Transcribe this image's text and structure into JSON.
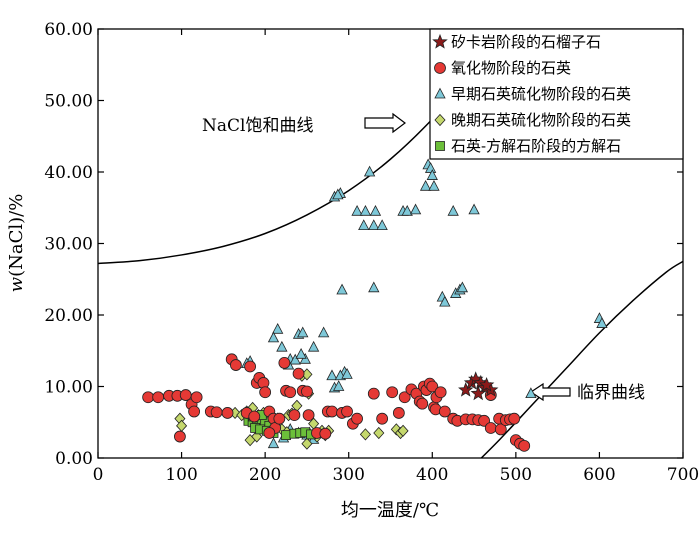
{
  "chart_data": {
    "type": "scatter",
    "xlabel": "均一温度/℃",
    "ylabel_prefix": "w",
    "ylabel_rest": "(NaCl)/%",
    "xlim": [
      0,
      700
    ],
    "ylim": [
      0,
      60
    ],
    "x_ticks": [
      0,
      100,
      200,
      300,
      400,
      500,
      600,
      700
    ],
    "y_ticks": [
      0,
      10,
      20,
      30,
      40,
      50,
      60
    ],
    "y_tick_labels": [
      "0.00",
      "10.00",
      "20.00",
      "30.00",
      "40.00",
      "50.00",
      "60.00"
    ],
    "colors": {
      "skarn": "#8B1A1A",
      "oxide": "#E53935",
      "early": "#7EC8D8",
      "late": "#C5D86D",
      "calcite": "#6CBF3A"
    },
    "curves": [
      {
        "name": "NaCl饱和曲线",
        "label": "NaCl饱和曲线",
        "points": [
          [
            0,
            27.2
          ],
          [
            50,
            27.6
          ],
          [
            100,
            28.4
          ],
          [
            150,
            29.6
          ],
          [
            200,
            31.4
          ],
          [
            250,
            34.0
          ],
          [
            300,
            37.4
          ],
          [
            350,
            41.8
          ],
          [
            400,
            47.4
          ],
          [
            450,
            54.2
          ],
          [
            494,
            61.5
          ]
        ]
      },
      {
        "name": "临界曲线",
        "label": "临界曲线",
        "points": [
          [
            450,
            -1
          ],
          [
            480,
            2.5
          ],
          [
            520,
            7.5
          ],
          [
            560,
            12.5
          ],
          [
            600,
            17.5
          ],
          [
            640,
            22
          ],
          [
            680,
            26
          ],
          [
            700,
            27.5
          ]
        ]
      }
    ],
    "series": [
      {
        "name": "矽卡岩阶段的石榴子石",
        "marker": "star",
        "points": [
          [
            440,
            9.5
          ],
          [
            447,
            10.5
          ],
          [
            452,
            11
          ],
          [
            458,
            10.5
          ],
          [
            463,
            9.8
          ],
          [
            470,
            9.5
          ],
          [
            455,
            9.0
          ],
          [
            465,
            10.2
          ]
        ]
      },
      {
        "name": "氧化物阶段的石英",
        "marker": "circle",
        "points": [
          [
            60,
            8.5
          ],
          [
            72,
            8.5
          ],
          [
            85,
            8.7
          ],
          [
            95,
            8.7
          ],
          [
            105,
            8.8
          ],
          [
            112,
            7.5
          ],
          [
            118,
            8.5
          ],
          [
            115,
            6.5
          ],
          [
            98,
            3
          ],
          [
            135,
            6.5
          ],
          [
            142,
            6.4
          ],
          [
            155,
            6.3
          ],
          [
            160,
            13.8
          ],
          [
            165,
            13
          ],
          [
            182,
            12.8
          ],
          [
            178,
            6.3
          ],
          [
            187,
            5.8
          ],
          [
            190,
            10.5
          ],
          [
            193,
            11.2
          ],
          [
            198,
            10.5
          ],
          [
            200,
            9.2
          ],
          [
            205,
            6.5
          ],
          [
            210,
            5.5
          ],
          [
            212,
            4.2
          ],
          [
            217,
            5.5
          ],
          [
            205,
            3.5
          ],
          [
            223,
            13.3
          ],
          [
            225,
            9.4
          ],
          [
            230,
            9.2
          ],
          [
            235,
            6.0
          ],
          [
            240,
            11.8
          ],
          [
            245,
            9.4
          ],
          [
            250,
            9.3
          ],
          [
            252,
            6.0
          ],
          [
            262,
            3.5
          ],
          [
            272,
            3.4
          ],
          [
            275,
            6.5
          ],
          [
            280,
            6.5
          ],
          [
            292,
            6.3
          ],
          [
            298,
            6.5
          ],
          [
            305,
            4.8
          ],
          [
            310,
            5.5
          ],
          [
            330,
            9.0
          ],
          [
            340,
            5.5
          ],
          [
            352,
            9.2
          ],
          [
            360,
            6.3
          ],
          [
            367,
            8.5
          ],
          [
            375,
            9.6
          ],
          [
            381,
            9.0
          ],
          [
            385,
            7.9
          ],
          [
            388,
            7.6
          ],
          [
            390,
            10.0
          ],
          [
            393,
            9.5
          ],
          [
            397,
            10.4
          ],
          [
            400,
            10.0
          ],
          [
            402,
            7.1
          ],
          [
            404,
            6.8
          ],
          [
            405,
            8.5
          ],
          [
            410,
            9.2
          ],
          [
            415,
            6.5
          ],
          [
            425,
            5.5
          ],
          [
            430,
            5.2
          ],
          [
            440,
            5.4
          ],
          [
            448,
            5.4
          ],
          [
            455,
            5.3
          ],
          [
            462,
            5.2
          ],
          [
            470,
            8.8
          ],
          [
            470,
            4.2
          ],
          [
            480,
            5.5
          ],
          [
            482,
            4.0
          ],
          [
            488,
            5.3
          ],
          [
            493,
            5.4
          ],
          [
            498,
            5.5
          ],
          [
            500,
            2.5
          ],
          [
            505,
            2.0
          ],
          [
            510,
            1.7
          ]
        ]
      },
      {
        "name": "早期石英硫化物阶段的石英",
        "marker": "triangle",
        "points": [
          [
            283,
            36.5
          ],
          [
            290,
            37.0
          ],
          [
            287,
            36.8
          ],
          [
            325,
            40.0
          ],
          [
            310,
            34.5
          ],
          [
            320,
            34.5
          ],
          [
            332,
            34.5
          ],
          [
            318,
            32.5
          ],
          [
            330,
            32.5
          ],
          [
            340,
            32.5
          ],
          [
            365,
            34.5
          ],
          [
            370,
            34.5
          ],
          [
            380,
            34.7
          ],
          [
            395,
            41.0
          ],
          [
            398,
            40.5
          ],
          [
            392,
            38.0
          ],
          [
            402,
            38.0
          ],
          [
            425,
            34.5
          ],
          [
            450,
            34.7
          ],
          [
            400,
            39.5
          ],
          [
            292,
            23.5
          ],
          [
            330,
            23.8
          ],
          [
            412,
            22.5
          ],
          [
            415,
            21.8
          ],
          [
            428,
            23.0
          ],
          [
            433,
            23.5
          ],
          [
            436,
            23.8
          ],
          [
            600,
            19.5
          ],
          [
            603,
            18.8
          ],
          [
            215,
            18.0
          ],
          [
            210,
            16.8
          ],
          [
            220,
            15.5
          ],
          [
            240,
            17.3
          ],
          [
            245,
            17.5
          ],
          [
            270,
            17.5
          ],
          [
            182,
            13.5
          ],
          [
            178,
            13.2
          ],
          [
            230,
            13.8
          ],
          [
            236,
            13.7
          ],
          [
            248,
            13.8
          ],
          [
            258,
            15.5
          ],
          [
            228,
            13.0
          ],
          [
            243,
            14.5
          ],
          [
            280,
            11.5
          ],
          [
            295,
            12.0
          ],
          [
            290,
            11.5
          ],
          [
            298,
            11.7
          ],
          [
            283,
            9.8
          ],
          [
            288,
            10.0
          ],
          [
            518,
            9.0
          ],
          [
            195,
            4.5
          ],
          [
            205,
            5.0
          ],
          [
            215,
            5.5
          ],
          [
            230,
            4.0
          ],
          [
            240,
            3.5
          ],
          [
            250,
            3.2
          ],
          [
            210,
            2.0
          ],
          [
            222,
            2.8
          ],
          [
            253,
            3.5
          ],
          [
            258,
            2.6
          ]
        ]
      },
      {
        "name": "晚期石英硫化物阶段的石英",
        "marker": "diamond",
        "points": [
          [
            98,
            5.5
          ],
          [
            100,
            4.5
          ],
          [
            164,
            6.3
          ],
          [
            172,
            6.0
          ],
          [
            178,
            6.5
          ],
          [
            185,
            7.0
          ],
          [
            192,
            6.0
          ],
          [
            198,
            6.3
          ],
          [
            200,
            5.5
          ],
          [
            215,
            5.2
          ],
          [
            220,
            4.0
          ],
          [
            228,
            6.0
          ],
          [
            232,
            6.2
          ],
          [
            238,
            7.3
          ],
          [
            244,
            11.5
          ],
          [
            250,
            11.7
          ],
          [
            252,
            9.0
          ],
          [
            258,
            4.8
          ],
          [
            268,
            3.8
          ],
          [
            272,
            3.2
          ],
          [
            276,
            3.8
          ],
          [
            182,
            2.5
          ],
          [
            190,
            3.0
          ],
          [
            226,
            3.6
          ],
          [
            250,
            2.0
          ],
          [
            262,
            3.0
          ],
          [
            320,
            3.3
          ],
          [
            336,
            3.5
          ],
          [
            357,
            4.0
          ],
          [
            362,
            3.5
          ],
          [
            365,
            3.8
          ]
        ]
      },
      {
        "name": "石英-方解石阶段的方解石",
        "marker": "square",
        "points": [
          [
            180,
            5.2
          ],
          [
            185,
            5.0
          ],
          [
            190,
            5.5
          ],
          [
            196,
            4.8
          ],
          [
            200,
            5.0
          ],
          [
            205,
            4.5
          ],
          [
            188,
            4.2
          ],
          [
            194,
            4.0
          ],
          [
            202,
            3.8
          ],
          [
            210,
            3.5
          ],
          [
            225,
            3.2
          ],
          [
            235,
            3.4
          ],
          [
            242,
            3.5
          ],
          [
            248,
            3.6
          ],
          [
            255,
            3.3
          ],
          [
            186,
            5.8
          ],
          [
            196,
            6.0
          ]
        ]
      }
    ]
  }
}
